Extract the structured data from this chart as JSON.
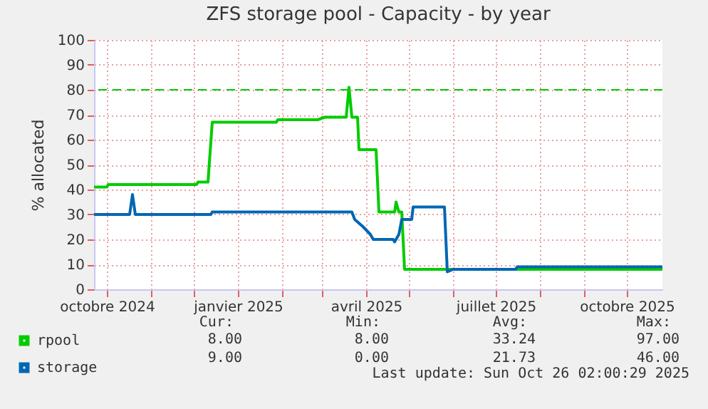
{
  "chart_data": {
    "type": "line",
    "title": "ZFS storage pool - Capacity - by year",
    "ylabel": "% allocated",
    "xlim": [
      "2024-09-22",
      "2025-10-26"
    ],
    "xticks": [
      {
        "value": "2024-10-01",
        "label": "octobre 2024"
      },
      {
        "value": "2024-11-01",
        "label": null
      },
      {
        "value": "2024-12-01",
        "label": null
      },
      {
        "value": "2025-01-01",
        "label": "janvier 2025"
      },
      {
        "value": "2025-02-01",
        "label": null
      },
      {
        "value": "2025-03-01",
        "label": null
      },
      {
        "value": "2025-04-01",
        "label": "avril 2025"
      },
      {
        "value": "2025-05-01",
        "label": null
      },
      {
        "value": "2025-06-01",
        "label": null
      },
      {
        "value": "2025-07-01",
        "label": "juillet 2025"
      },
      {
        "value": "2025-08-01",
        "label": null
      },
      {
        "value": "2025-09-01",
        "label": null
      },
      {
        "value": "2025-10-01",
        "label": "octobre 2025"
      }
    ],
    "ylim": [
      0,
      100
    ],
    "yticks": [
      0,
      10,
      20,
      30,
      40,
      50,
      60,
      70,
      80,
      90,
      100
    ],
    "grid": true,
    "legend": "bottom left",
    "series": [
      {
        "name": "rpool",
        "color": "#00cc00",
        "x": [
          "2024-09-22",
          "2024-10-01",
          "2024-10-02",
          "2024-12-03",
          "2024-12-04",
          "2024-12-11",
          "2024-12-14",
          "2025-01-28",
          "2025-01-29",
          "2025-02-26",
          "2025-03-03",
          "2025-03-18",
          "2025-03-20",
          "2025-03-22",
          "2025-03-26",
          "2025-03-27",
          "2025-04-08",
          "2025-04-10",
          "2025-04-21",
          "2025-04-22",
          "2025-04-24",
          "2025-04-26",
          "2025-04-28",
          "2025-10-26"
        ],
        "values": [
          41,
          41,
          42,
          42,
          43,
          43,
          67,
          67,
          68,
          68,
          69,
          69,
          81,
          69,
          69,
          56,
          56,
          31,
          31,
          35,
          31,
          31,
          8,
          8
        ]
      },
      {
        "name": "storage",
        "color": "#0066b3",
        "x": [
          "2024-09-22",
          "2024-10-17",
          "2024-10-19",
          "2024-10-21",
          "2024-12-13",
          "2024-12-14",
          "2025-03-22",
          "2025-03-24",
          "2025-03-30",
          "2025-04-04",
          "2025-04-06",
          "2025-04-20",
          "2025-04-21",
          "2025-04-24",
          "2025-04-26",
          "2025-05-03",
          "2025-05-04",
          "2025-05-26",
          "2025-05-28",
          "2025-06-01",
          "2025-07-15",
          "2025-07-16",
          "2025-10-26"
        ],
        "values": [
          30,
          30,
          38,
          30,
          30,
          31,
          31,
          28,
          25,
          22,
          20,
          20,
          19,
          22,
          28,
          28,
          33,
          33,
          7,
          8,
          8,
          9,
          9
        ]
      }
    ],
    "ref_lines": [
      {
        "axis": "y",
        "value": 80,
        "color": "#00cc00",
        "line_style": "dashed"
      }
    ],
    "annotations": [
      "Cur:",
      "Min:",
      "Avg:",
      "Max:",
      "8.00",
      "8.00",
      "33.24",
      "97.00",
      "9.00",
      "0.00",
      "21.73",
      "46.00",
      "Last update: Sun Oct 26 02:00:29 2025"
    ]
  }
}
